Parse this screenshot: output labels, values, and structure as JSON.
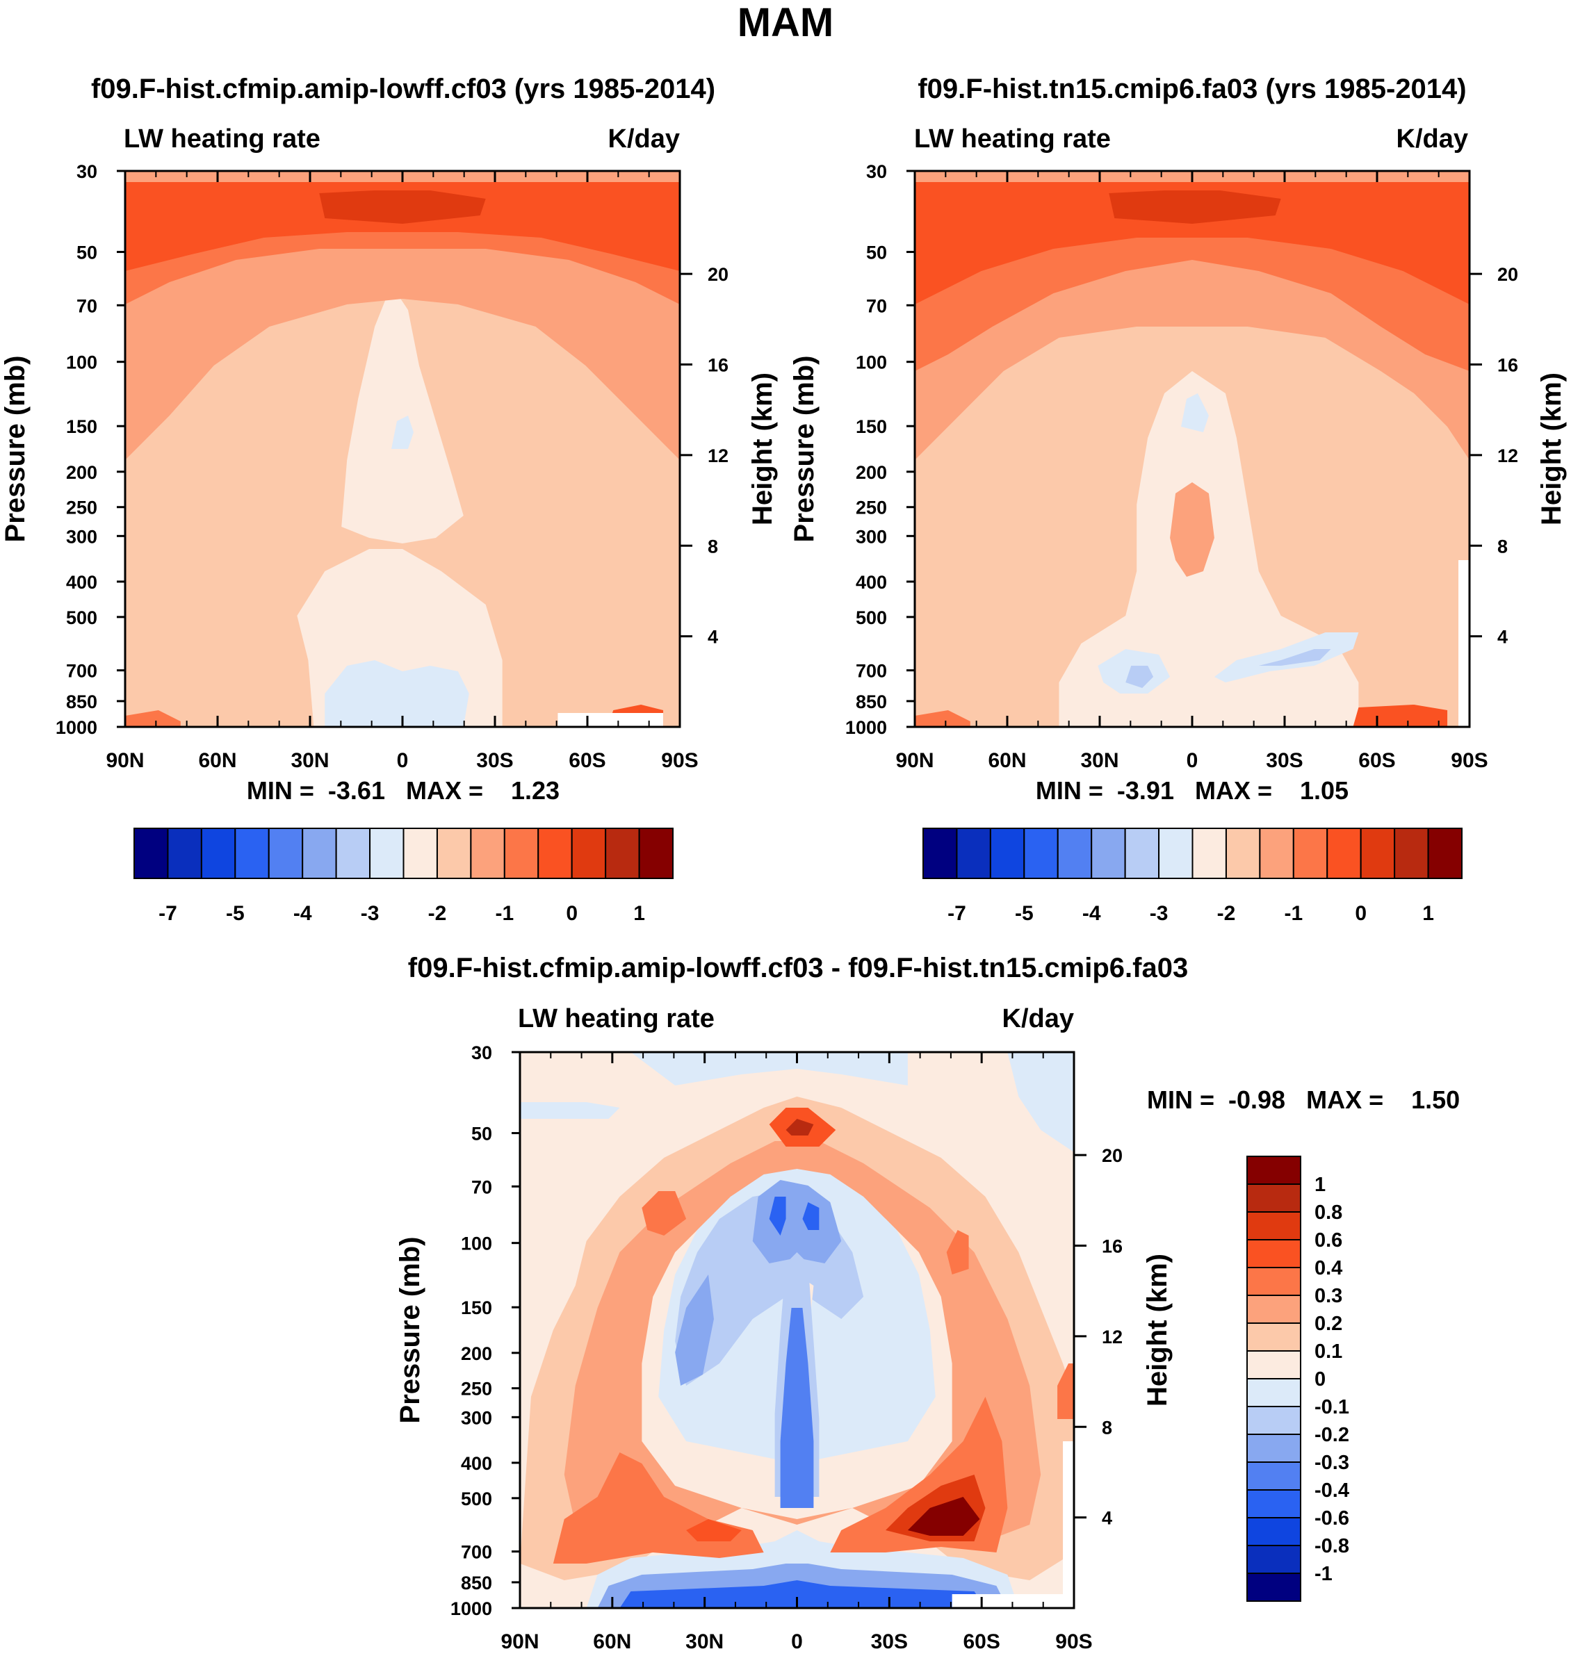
{
  "figure": {
    "title": "MAM"
  },
  "colors": {
    "top_levels": [
      "#000080",
      "#0a2fbd",
      "#0f45e0",
      "#2a62f2",
      "#5280f2",
      "#88a8f0",
      "#b8cdf5",
      "#dceaf9",
      "#fcebe0",
      "#fcc9aa",
      "#fca27c",
      "#fc7648",
      "#fa5222",
      "#e03a10",
      "#b82a10",
      "#850000"
    ],
    "diff_levels": [
      "#000080",
      "#0a2fbd",
      "#0f45e0",
      "#2a62f2",
      "#5280f2",
      "#88a8f0",
      "#b8cdf5",
      "#dceaf9",
      "#fcebe0",
      "#fcc9aa",
      "#fca27c",
      "#fc7648",
      "#fa5222",
      "#e03a10",
      "#b82a10",
      "#850000"
    ]
  },
  "chart_data": [
    {
      "type": "heatmap",
      "title": "f09.F-hist.cfmip.amip-lowff.cf03 (yrs 1985-2014)",
      "left_label": "LW heating rate",
      "right_label": "K/day",
      "xlabel": "",
      "ylabel": "Pressure (mb)",
      "y2label": "Height (km)",
      "x_ticks": [
        "90N",
        "60N",
        "30N",
        "0",
        "30S",
        "60S",
        "90S"
      ],
      "y_ticks": [
        "30",
        "50",
        "70",
        "100",
        "150",
        "200",
        "250",
        "300",
        "400",
        "500",
        "700",
        "850",
        "1000"
      ],
      "y2_ticks": [
        "20",
        "16",
        "12",
        "8",
        "4"
      ],
      "ylim": [
        1000,
        30
      ],
      "stats": "MIN =  -3.61   MAX =    1.23",
      "colorbar": {
        "orientation": "horizontal",
        "labels": [
          "-7",
          "-5",
          "-4",
          "-3",
          "-2",
          "-1",
          "0",
          "1"
        ]
      }
    },
    {
      "type": "heatmap",
      "title": "f09.F-hist.tn15.cmip6.fa03 (yrs 1985-2014)",
      "left_label": "LW heating rate",
      "right_label": "K/day",
      "xlabel": "",
      "ylabel": "Pressure (mb)",
      "y2label": "Height (km)",
      "x_ticks": [
        "90N",
        "60N",
        "30N",
        "0",
        "30S",
        "60S",
        "90S"
      ],
      "y_ticks": [
        "30",
        "50",
        "70",
        "100",
        "150",
        "200",
        "250",
        "300",
        "400",
        "500",
        "700",
        "850",
        "1000"
      ],
      "y2_ticks": [
        "20",
        "16",
        "12",
        "8",
        "4"
      ],
      "ylim": [
        1000,
        30
      ],
      "stats": "MIN =  -3.91   MAX =    1.05",
      "colorbar": {
        "orientation": "horizontal",
        "labels": [
          "-7",
          "-5",
          "-4",
          "-3",
          "-2",
          "-1",
          "0",
          "1"
        ]
      }
    },
    {
      "type": "heatmap",
      "title": "f09.F-hist.cfmip.amip-lowff.cf03 - f09.F-hist.tn15.cmip6.fa03",
      "left_label": "LW heating rate",
      "right_label": "K/day",
      "xlabel": "",
      "ylabel": "Pressure (mb)",
      "y2label": "Height (km)",
      "x_ticks": [
        "90N",
        "60N",
        "30N",
        "0",
        "30S",
        "60S",
        "90S"
      ],
      "y_ticks": [
        "30",
        "50",
        "70",
        "100",
        "150",
        "200",
        "250",
        "300",
        "400",
        "500",
        "700",
        "850",
        "1000"
      ],
      "y2_ticks": [
        "20",
        "16",
        "12",
        "8",
        "4"
      ],
      "ylim": [
        1000,
        30
      ],
      "stats": "MIN =  -0.98   MAX =    1.50",
      "colorbar": {
        "orientation": "vertical",
        "labels": [
          "1",
          "0.8",
          "0.6",
          "0.4",
          "0.3",
          "0.2",
          "0.1",
          "0",
          "-0.1",
          "-0.2",
          "-0.3",
          "-0.4",
          "-0.6",
          "-0.8",
          "-1"
        ]
      }
    }
  ]
}
